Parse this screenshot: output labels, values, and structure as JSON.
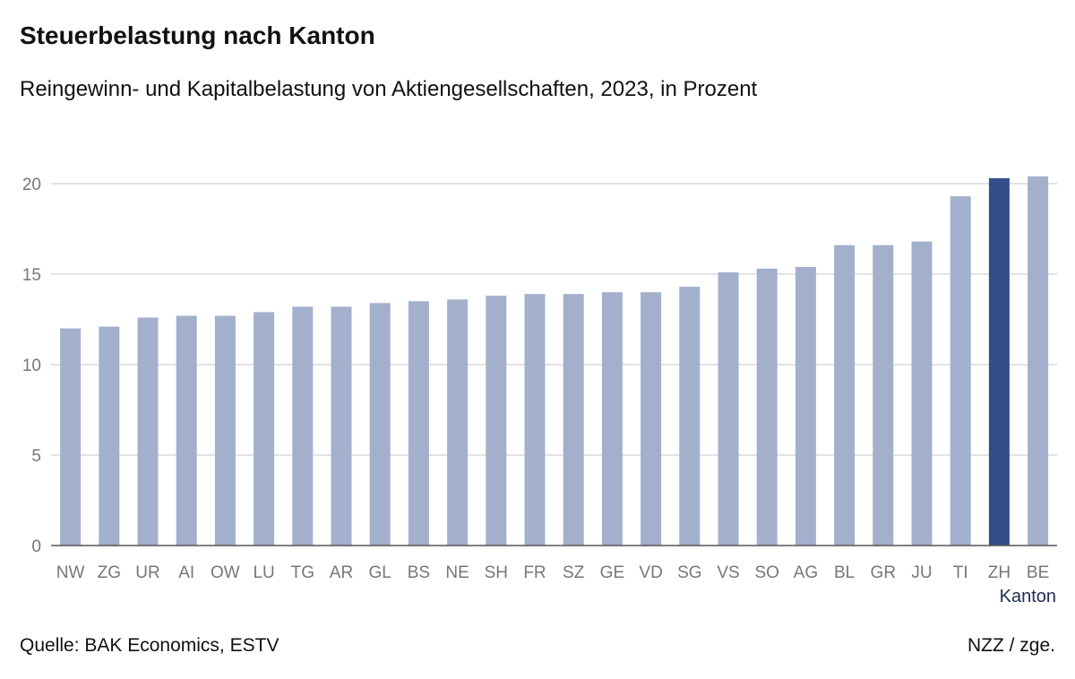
{
  "header": {
    "title": "Steuerbelastung nach Kanton",
    "subtitle": "Reingewinn- und Kapitalbelastung von Aktiengesellschaften, 2023, in Prozent"
  },
  "footer": {
    "source": "Quelle: BAK Economics, ESTV",
    "credit": "NZZ / zge."
  },
  "colors": {
    "bar": "#a3b0cc",
    "highlight": "#344e8c",
    "grid": "#d9d9e0",
    "axis": "#555555",
    "tick_text": "#777777",
    "axis_title": "#1f2a55"
  },
  "chart_data": {
    "type": "bar",
    "title": "Steuerbelastung nach Kanton",
    "subtitle": "Reingewinn- und Kapitalbelastung von Aktiengesellschaften, 2023, in Prozent",
    "xlabel": "Kanton",
    "ylabel": "",
    "ylim": [
      0,
      20.5
    ],
    "yticks": [
      0,
      5,
      10,
      15,
      20
    ],
    "grid": true,
    "categories": [
      "NW",
      "ZG",
      "UR",
      "AI",
      "OW",
      "LU",
      "TG",
      "AR",
      "GL",
      "BS",
      "NE",
      "SH",
      "FR",
      "SZ",
      "GE",
      "VD",
      "SG",
      "VS",
      "SO",
      "AG",
      "BL",
      "GR",
      "JU",
      "TI",
      "ZH",
      "BE"
    ],
    "values": [
      12.0,
      12.1,
      12.6,
      12.7,
      12.7,
      12.9,
      13.2,
      13.2,
      13.4,
      13.5,
      13.6,
      13.8,
      13.9,
      13.9,
      14.0,
      14.0,
      14.3,
      15.1,
      15.3,
      15.4,
      16.6,
      16.6,
      16.8,
      19.3,
      20.3,
      20.4
    ],
    "highlight": "ZH"
  }
}
